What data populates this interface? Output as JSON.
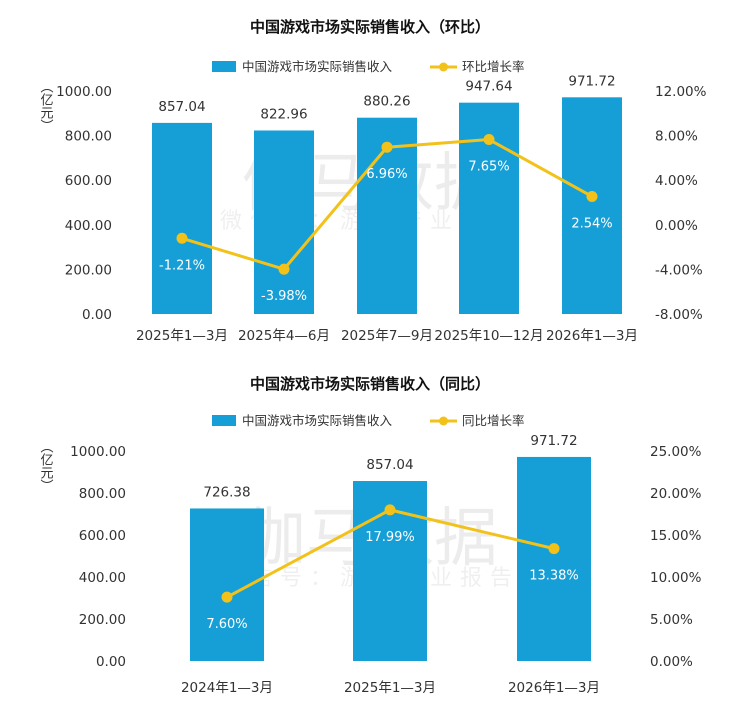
{
  "watermark": {
    "main": "伽马数据",
    "sub": "微信号：游戏产业报告"
  },
  "colors": {
    "bar": "#159fd6",
    "line": "#f2c21b",
    "label_on_bar": "#ffffff"
  },
  "chart_data": [
    {
      "type": "bar+line",
      "title": "中国游戏市场实际销售收入（环比）",
      "unit_label": "（亿元）",
      "categories": [
        "2025年1—3月",
        "2025年4—6月",
        "2025年7—9月",
        "2025年10—12月",
        "2026年1—3月"
      ],
      "series": [
        {
          "name": "中国游戏市场实际销售收入",
          "type": "bar",
          "axis": "left",
          "values": [
            857.04,
            822.96,
            880.26,
            947.64,
            971.72
          ],
          "labels": [
            "857.04",
            "822.96",
            "880.26",
            "947.64",
            "971.72"
          ]
        },
        {
          "name": "环比增长率",
          "type": "line",
          "axis": "right",
          "values": [
            -1.21,
            -3.98,
            6.96,
            7.65,
            2.54
          ],
          "labels": [
            "-1.21%",
            "-3.98%",
            "6.96%",
            "7.65%",
            "2.54%"
          ]
        }
      ],
      "left_axis": {
        "ylim": [
          0,
          1000
        ],
        "ticks": [
          "0.00",
          "200.00",
          "400.00",
          "600.00",
          "800.00",
          "1000.00"
        ]
      },
      "right_axis": {
        "ylim": [
          -8,
          12
        ],
        "ticks": [
          "-8.00%",
          "-4.00%",
          "0.00%",
          "4.00%",
          "8.00%",
          "12.00%"
        ]
      },
      "legend": "top",
      "grid": false
    },
    {
      "type": "bar+line",
      "title": "中国游戏市场实际销售收入（同比）",
      "unit_label": "（亿元）",
      "categories": [
        "2024年1—3月",
        "2025年1—3月",
        "2026年1—3月"
      ],
      "series": [
        {
          "name": "中国游戏市场实际销售收入",
          "type": "bar",
          "axis": "left",
          "values": [
            726.38,
            857.04,
            971.72
          ],
          "labels": [
            "726.38",
            "857.04",
            "971.72"
          ]
        },
        {
          "name": "同比增长率",
          "type": "line",
          "axis": "right",
          "values": [
            7.6,
            17.99,
            13.38
          ],
          "labels": [
            "7.60%",
            "17.99%",
            "13.38%"
          ]
        }
      ],
      "left_axis": {
        "ylim": [
          0,
          1000
        ],
        "ticks": [
          "0.00",
          "200.00",
          "400.00",
          "600.00",
          "800.00",
          "1000.00"
        ]
      },
      "right_axis": {
        "ylim": [
          0,
          25
        ],
        "ticks": [
          "0.00%",
          "5.00%",
          "10.00%",
          "15.00%",
          "20.00%",
          "25.00%"
        ]
      },
      "legend": "top",
      "grid": false
    }
  ]
}
